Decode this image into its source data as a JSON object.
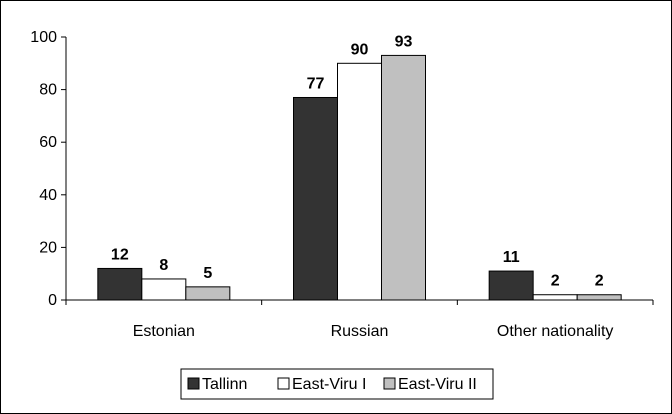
{
  "chart_data": {
    "type": "bar",
    "categories": [
      "Estonian",
      "Russian",
      "Other nationality"
    ],
    "series": [
      {
        "name": "Tallinn",
        "values": [
          12,
          77,
          11
        ],
        "color": "#333333"
      },
      {
        "name": "East-Viru I",
        "values": [
          8,
          90,
          2
        ],
        "color": "#ffffff"
      },
      {
        "name": "East-Viru II",
        "values": [
          5,
          93,
          2
        ],
        "color": "#c0c0c0"
      }
    ],
    "title": "",
    "xlabel": "",
    "ylabel": "",
    "ylim": [
      0,
      100
    ],
    "yticks": [
      0,
      20,
      40,
      60,
      80,
      100
    ],
    "grid": false,
    "legend_position": "bottom"
  }
}
